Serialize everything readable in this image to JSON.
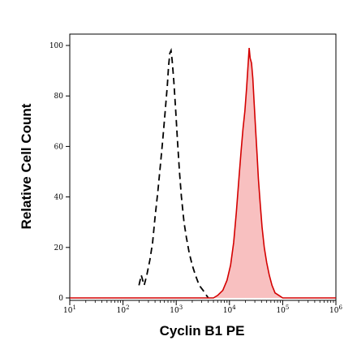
{
  "chart_data": {
    "type": "area",
    "xlabel": "Cyclin B1 PE",
    "ylabel": "Relative Cell Count",
    "xscale": "log",
    "xlim": [
      10,
      1000000
    ],
    "ylim": [
      0,
      100
    ],
    "x_ticks": [
      10,
      100,
      1000,
      10000,
      100000,
      1000000
    ],
    "x_tick_labels": [
      {
        "base": "10",
        "exp": "1"
      },
      {
        "base": "10",
        "exp": "2"
      },
      {
        "base": "10",
        "exp": "3"
      },
      {
        "base": "10",
        "exp": "4"
      },
      {
        "base": "10",
        "exp": "5"
      },
      {
        "base": "10",
        "exp": "6"
      }
    ],
    "y_ticks": [
      0,
      20,
      40,
      60,
      80,
      100
    ],
    "y_tick_labels": [
      "0",
      "20",
      "40",
      "60",
      "80",
      "100"
    ],
    "grid": false,
    "series": [
      {
        "style": "dashed-black-line",
        "color": "#000000",
        "points": [
          [
            200,
            5
          ],
          [
            220,
            9
          ],
          [
            250,
            5
          ],
          [
            280,
            9
          ],
          [
            320,
            15
          ],
          [
            360,
            22
          ],
          [
            400,
            32
          ],
          [
            450,
            42
          ],
          [
            500,
            52
          ],
          [
            560,
            63
          ],
          [
            620,
            74
          ],
          [
            680,
            84
          ],
          [
            720,
            92
          ],
          [
            760,
            97
          ],
          [
            800,
            98
          ],
          [
            840,
            94
          ],
          [
            900,
            86
          ],
          [
            980,
            74
          ],
          [
            1050,
            63
          ],
          [
            1150,
            50
          ],
          [
            1250,
            40
          ],
          [
            1400,
            30
          ],
          [
            1550,
            24
          ],
          [
            1750,
            18
          ],
          [
            2000,
            13
          ],
          [
            2300,
            9
          ],
          [
            2700,
            5
          ],
          [
            3200,
            3
          ],
          [
            3700,
            1
          ],
          [
            4000,
            0
          ]
        ]
      },
      {
        "style": "filled-red-area",
        "color": "#d40000",
        "fill": "#f8c0c0",
        "points": [
          [
            10,
            0
          ],
          [
            5000,
            0
          ],
          [
            6000,
            1
          ],
          [
            7500,
            3
          ],
          [
            9000,
            7
          ],
          [
            10500,
            13
          ],
          [
            12000,
            22
          ],
          [
            13500,
            34
          ],
          [
            15000,
            47
          ],
          [
            16500,
            58
          ],
          [
            18000,
            67
          ],
          [
            19500,
            74
          ],
          [
            21000,
            83
          ],
          [
            22500,
            93
          ],
          [
            23500,
            99
          ],
          [
            24500,
            95
          ],
          [
            26000,
            93
          ],
          [
            27500,
            87
          ],
          [
            29000,
            78
          ],
          [
            31000,
            67
          ],
          [
            33000,
            57
          ],
          [
            35000,
            47
          ],
          [
            38000,
            37
          ],
          [
            41000,
            28
          ],
          [
            45000,
            20
          ],
          [
            50000,
            14
          ],
          [
            56000,
            9
          ],
          [
            63000,
            5
          ],
          [
            72000,
            2
          ],
          [
            85000,
            1
          ],
          [
            100000,
            0
          ],
          [
            1000000,
            0
          ]
        ]
      }
    ]
  }
}
